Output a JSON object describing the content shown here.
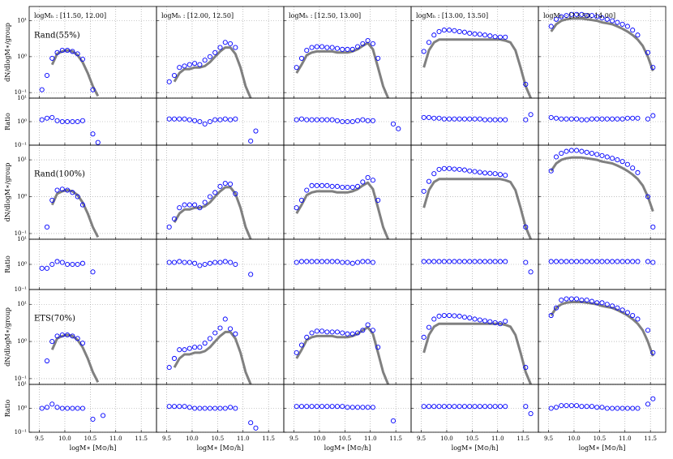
{
  "chart_data": {
    "type": "scatter",
    "column_titles": [
      "logMₕ : [11.50, 12.00]",
      "logMₕ : [12.00, 12.50]",
      "logMₕ : [12.50, 13.00]",
      "logMₕ : [13.00, 13.50]",
      "logMₕ : [13.50, 14.00]"
    ],
    "row_labels": [
      "Rand(55%)",
      "Rand(100%)",
      "ETS(70%)"
    ],
    "ylabel": "dN/dlogM∗/group",
    "ratio_ylabel": "Ratio",
    "xlabel": "logM∗ [M⊙/h]",
    "xlim": [
      9.3,
      11.8
    ],
    "xticks": [
      {
        "value": 9.5,
        "label": "9.5"
      },
      {
        "value": 10,
        "label": "10.0"
      },
      {
        "value": 10.5,
        "label": "10.5"
      },
      {
        "value": 11,
        "label": "11.0"
      },
      {
        "value": 11.5,
        "label": "11.5"
      }
    ],
    "ylim": [
      0.07,
      25
    ],
    "yticks": [
      {
        "value": 0.1,
        "label": "10⁻¹"
      },
      {
        "value": 1,
        "label": "10⁰"
      },
      {
        "value": 10,
        "label": "10¹"
      }
    ],
    "ratio_ylim": [
      0.1,
      10
    ],
    "ratio_yticks": [
      {
        "value": 0.1,
        "label": "10⁻¹"
      },
      {
        "value": 1,
        "label": "10⁰"
      },
      {
        "value": 10,
        "label": "10¹"
      }
    ],
    "log_scale": true,
    "grid": true,
    "point_color": "#0000ff",
    "model_color": "#808080",
    "x": [
      9.55,
      9.65,
      9.75,
      9.85,
      9.95,
      10.05,
      10.15,
      10.25,
      10.35,
      10.45,
      10.55,
      10.65,
      10.75,
      10.85,
      10.95,
      11.05,
      11.15,
      11.25,
      11.35,
      11.45,
      11.55,
      11.65
    ],
    "models": [
      [
        null,
        null,
        0.6,
        1.2,
        1.4,
        1.5,
        1.4,
        1.1,
        0.7,
        0.35,
        0.15,
        0.08,
        null,
        null,
        null,
        null,
        null,
        null,
        null,
        null,
        null,
        null
      ],
      [
        null,
        0.2,
        0.35,
        0.45,
        0.45,
        0.5,
        0.5,
        0.55,
        0.7,
        1.0,
        1.4,
        1.8,
        1.8,
        1.2,
        0.5,
        0.15,
        0.07,
        null,
        null,
        null,
        null,
        null
      ],
      [
        0.35,
        0.6,
        1.1,
        1.3,
        1.4,
        1.4,
        1.4,
        1.4,
        1.3,
        1.3,
        1.3,
        1.4,
        1.6,
        2.0,
        2.4,
        1.6,
        0.5,
        0.15,
        0.07,
        null,
        null,
        null
      ],
      [
        0.5,
        1.5,
        2.5,
        3,
        3,
        3,
        3,
        3,
        3,
        3,
        3,
        3,
        3,
        3,
        3,
        3,
        2.8,
        2.5,
        1.5,
        0.5,
        0.15,
        0.07
      ],
      [
        5,
        8,
        10,
        11,
        11.5,
        11.5,
        11.5,
        11,
        10.5,
        10,
        9,
        8.5,
        8,
        7,
        6,
        5,
        4,
        3,
        2,
        1,
        0.4,
        null
      ]
    ],
    "panels": [
      [
        {
          "values": [
            0.12,
            0.3,
            0.9,
            1.3,
            1.5,
            1.5,
            1.4,
            1.2,
            0.85,
            null,
            0.12,
            null,
            null,
            null,
            null,
            null,
            null,
            null,
            null,
            null,
            null,
            null
          ],
          "ratio": [
            1.2,
            1.4,
            1.5,
            1.1,
            1.0,
            1.0,
            1.0,
            1.0,
            1.1,
            null,
            0.3,
            0.13,
            null,
            null,
            null,
            null,
            null,
            null,
            null,
            null,
            null,
            null
          ]
        },
        {
          "values": [
            0.2,
            0.3,
            0.5,
            0.55,
            0.6,
            0.65,
            0.6,
            0.8,
            1.0,
            1.3,
            1.8,
            2.5,
            2.3,
            1.8,
            null,
            null,
            null,
            null,
            null,
            null,
            null,
            null
          ],
          "ratio": [
            1.3,
            1.3,
            1.3,
            1.3,
            1.2,
            1.1,
            1.0,
            0.8,
            1.0,
            1.2,
            1.2,
            1.3,
            1.2,
            1.3,
            null,
            null,
            0.15,
            0.4,
            null,
            null,
            null,
            null
          ]
        },
        {
          "values": [
            0.5,
            0.9,
            1.5,
            1.8,
            1.9,
            1.9,
            1.8,
            1.8,
            1.7,
            1.6,
            1.6,
            1.6,
            1.9,
            2.3,
            2.8,
            2.3,
            0.9,
            null,
            null,
            null,
            null,
            null
          ],
          "ratio": [
            1.2,
            1.3,
            1.2,
            1.2,
            1.2,
            1.2,
            1.2,
            1.2,
            1.1,
            1.0,
            1.0,
            1.0,
            1.1,
            1.2,
            1.1,
            1.1,
            null,
            null,
            null,
            0.8,
            0.5,
            null
          ]
        },
        {
          "values": [
            1.4,
            2.5,
            4,
            5,
            5.5,
            5.5,
            5.3,
            5.0,
            4.8,
            4.5,
            4.3,
            4.2,
            4.0,
            3.8,
            3.6,
            3.5,
            3.5,
            null,
            null,
            null,
            0.17,
            null
          ],
          "ratio": [
            1.5,
            1.5,
            1.4,
            1.4,
            1.3,
            1.3,
            1.3,
            1.3,
            1.3,
            1.3,
            1.3,
            1.3,
            1.2,
            1.2,
            1.2,
            1.2,
            1.2,
            null,
            null,
            null,
            1.2,
            2.0
          ]
        },
        {
          "values": [
            7,
            11,
            13,
            14,
            15,
            15,
            15,
            14,
            14,
            13,
            12,
            11,
            10,
            9,
            8,
            7,
            5.5,
            4,
            null,
            1.3,
            0.5,
            null
          ],
          "ratio": [
            1.5,
            1.4,
            1.3,
            1.3,
            1.3,
            1.3,
            1.2,
            1.2,
            1.3,
            1.3,
            1.3,
            1.3,
            1.3,
            1.3,
            1.3,
            1.4,
            1.4,
            1.4,
            null,
            1.3,
            1.8,
            null
          ]
        }
      ],
      [
        {
          "values": [
            null,
            0.15,
            0.8,
            1.5,
            1.6,
            1.5,
            1.3,
            1.0,
            0.6,
            null,
            null,
            null,
            null,
            null,
            null,
            null,
            null,
            null,
            null,
            null,
            null,
            null
          ],
          "ratio": [
            0.7,
            0.7,
            1.0,
            1.3,
            1.2,
            1.0,
            1.0,
            1.0,
            1.1,
            null,
            0.5,
            null,
            null,
            null,
            null,
            null,
            null,
            null,
            null,
            null,
            null,
            null
          ]
        },
        {
          "values": [
            0.15,
            0.25,
            0.5,
            0.6,
            0.6,
            0.6,
            0.5,
            0.7,
            1.0,
            1.3,
            1.9,
            2.3,
            2.2,
            1.2,
            null,
            null,
            null,
            null,
            null,
            null,
            null,
            null
          ],
          "ratio": [
            1.2,
            1.2,
            1.3,
            1.2,
            1.2,
            1.1,
            0.9,
            1.0,
            1.1,
            1.2,
            1.2,
            1.3,
            1.2,
            1.0,
            null,
            null,
            0.4,
            null,
            null,
            null,
            null,
            null
          ]
        },
        {
          "values": [
            0.5,
            0.8,
            1.5,
            2.0,
            2.0,
            2.0,
            2.0,
            1.9,
            1.9,
            1.8,
            1.8,
            1.8,
            1.9,
            2.5,
            3.3,
            2.8,
            0.8,
            null,
            null,
            null,
            null,
            null
          ],
          "ratio": [
            1.2,
            1.3,
            1.3,
            1.3,
            1.3,
            1.3,
            1.3,
            1.3,
            1.3,
            1.2,
            1.2,
            1.1,
            1.2,
            1.3,
            1.3,
            1.2,
            null,
            null,
            null,
            null,
            null,
            null
          ]
        },
        {
          "values": [
            1.4,
            2.6,
            4.2,
            5.5,
            5.8,
            5.8,
            5.6,
            5.5,
            5.3,
            5.0,
            4.8,
            4.6,
            4.4,
            4.3,
            4.2,
            4.0,
            3.8,
            null,
            null,
            null,
            0.15,
            null
          ],
          "ratio": [
            1.3,
            1.3,
            1.3,
            1.3,
            1.3,
            1.3,
            1.3,
            1.3,
            1.3,
            1.3,
            1.3,
            1.3,
            1.3,
            1.3,
            1.3,
            1.3,
            1.3,
            null,
            null,
            null,
            1.2,
            0.5
          ]
        },
        {
          "values": [
            5,
            12,
            15,
            17,
            18,
            18,
            17,
            16,
            15,
            14,
            13,
            12,
            11,
            10,
            9,
            7.5,
            6,
            4.5,
            null,
            1.0,
            0.15,
            null
          ],
          "ratio": [
            1.3,
            1.3,
            1.3,
            1.3,
            1.3,
            1.3,
            1.3,
            1.3,
            1.3,
            1.3,
            1.3,
            1.3,
            1.3,
            1.3,
            1.3,
            1.3,
            1.3,
            1.3,
            null,
            1.3,
            1.2,
            null
          ]
        }
      ],
      [
        {
          "values": [
            null,
            0.3,
            1.0,
            1.4,
            1.5,
            1.5,
            1.4,
            1.2,
            0.9,
            null,
            null,
            null,
            null,
            null,
            null,
            null,
            null,
            null,
            null,
            null,
            null,
            null
          ],
          "ratio": [
            1.0,
            1.1,
            1.5,
            1.1,
            1.0,
            1.0,
            1.0,
            1.0,
            1.0,
            null,
            0.35,
            null,
            0.5,
            null,
            null,
            null,
            null,
            null,
            null,
            null,
            null,
            null
          ]
        },
        {
          "values": [
            0.2,
            0.35,
            0.6,
            0.6,
            0.65,
            0.7,
            0.7,
            0.9,
            1.2,
            1.7,
            2.3,
            4.0,
            2.2,
            1.6,
            null,
            null,
            null,
            null,
            null,
            null,
            null,
            null
          ],
          "ratio": [
            1.2,
            1.2,
            1.2,
            1.2,
            1.1,
            1.0,
            1.0,
            1.0,
            1.0,
            1.0,
            1.0,
            1.0,
            1.1,
            1.0,
            null,
            null,
            0.25,
            0.15,
            null,
            null,
            null,
            null
          ]
        },
        {
          "values": [
            0.5,
            0.8,
            1.3,
            1.7,
            1.9,
            1.9,
            1.8,
            1.8,
            1.8,
            1.7,
            1.6,
            1.6,
            1.7,
            2.0,
            2.8,
            2.0,
            0.7,
            null,
            null,
            null,
            null,
            null
          ],
          "ratio": [
            1.2,
            1.2,
            1.2,
            1.2,
            1.2,
            1.2,
            1.2,
            1.2,
            1.2,
            1.2,
            1.1,
            1.1,
            1.1,
            1.1,
            1.1,
            1.1,
            null,
            null,
            null,
            0.3,
            null,
            null
          ]
        },
        {
          "values": [
            1.3,
            2.4,
            4,
            4.8,
            5,
            5,
            4.9,
            4.8,
            4.5,
            4.3,
            4.0,
            3.8,
            3.6,
            3.4,
            3.2,
            3.0,
            3.5,
            null,
            null,
            null,
            0.2,
            null
          ],
          "ratio": [
            1.2,
            1.2,
            1.2,
            1.2,
            1.2,
            1.2,
            1.2,
            1.2,
            1.2,
            1.2,
            1.2,
            1.2,
            1.2,
            1.2,
            1.2,
            1.2,
            1.2,
            null,
            null,
            null,
            1.2,
            0.6
          ]
        },
        {
          "values": [
            5,
            8,
            13,
            14,
            14,
            14,
            13,
            13,
            12,
            11,
            11,
            10,
            9,
            8,
            7,
            6,
            5,
            4,
            null,
            2,
            0.5,
            null
          ],
          "ratio": [
            1.0,
            1.1,
            1.3,
            1.3,
            1.3,
            1.3,
            1.2,
            1.2,
            1.2,
            1.1,
            1.1,
            1.0,
            1.0,
            1.0,
            1.0,
            1.0,
            1.0,
            1.0,
            null,
            1.5,
            2.5,
            null
          ]
        }
      ]
    ]
  }
}
